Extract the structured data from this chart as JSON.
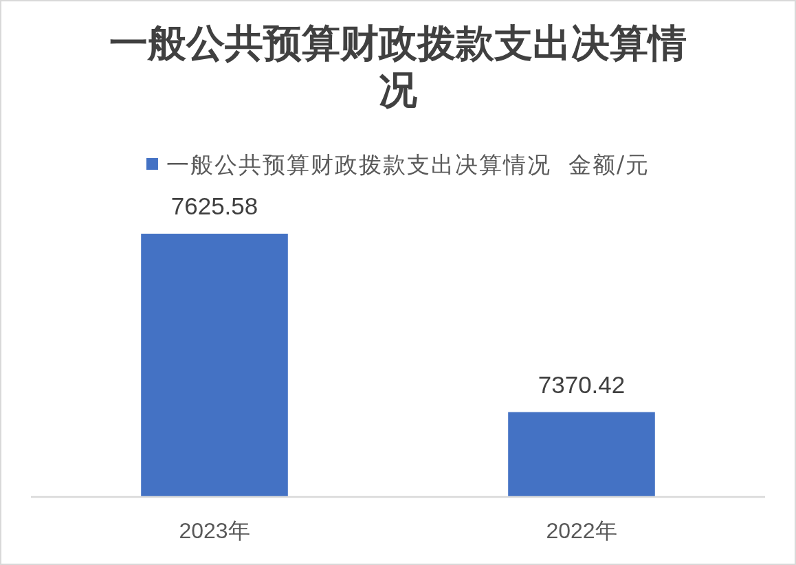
{
  "chart_data": {
    "type": "bar",
    "title": "一般公共预算财政拨款支出决算情况",
    "categories": [
      "2023年",
      "2022年"
    ],
    "series": [
      {
        "name": "一般公共预算财政拨款支出决算情况  金额/元",
        "color": "#4472c4",
        "values": [
          7625.58,
          7370.42
        ]
      }
    ],
    "ylim": [
      7250,
      7625.58
    ],
    "tick_labels": "x",
    "data_labels": true,
    "legend": "top"
  }
}
